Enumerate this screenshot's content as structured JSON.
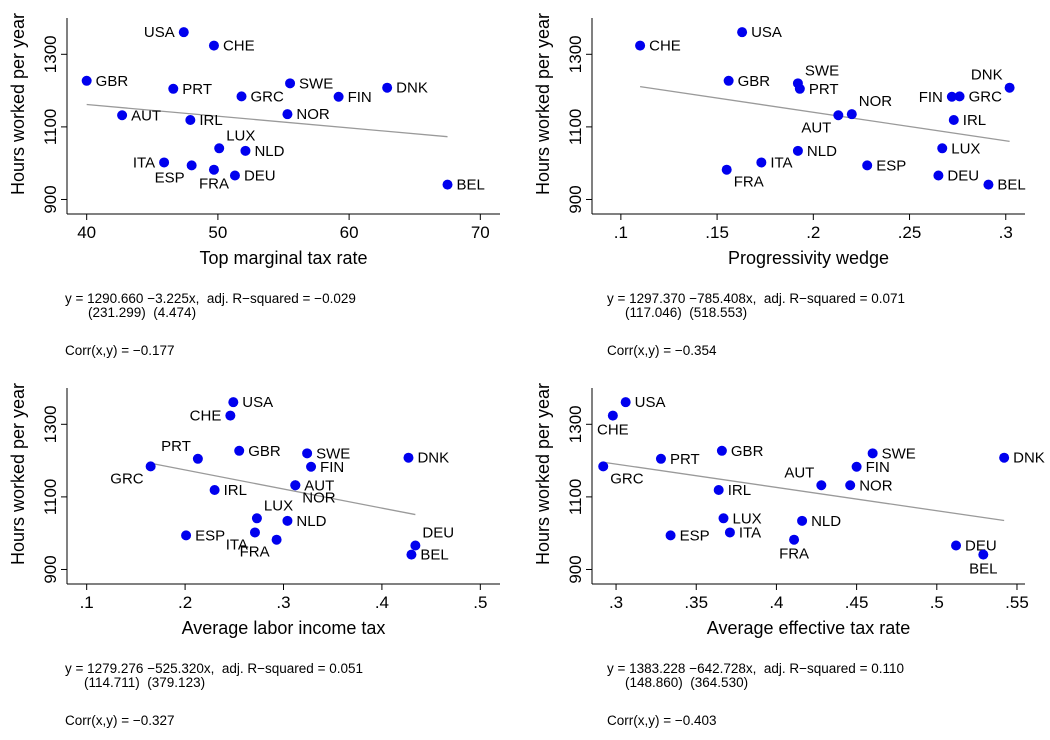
{
  "chart_data": [
    {
      "type": "scatter",
      "xlabel": "Top marginal tax rate",
      "ylabel": "Hours worked per year",
      "xlim": [
        38.5,
        71.5
      ],
      "ylim": [
        860,
        1400
      ],
      "xticks": [
        40,
        50,
        60,
        70
      ],
      "xtick_labels": [
        "40",
        "50",
        "60",
        "70"
      ],
      "yticks": [
        900,
        1100,
        1300
      ],
      "ytick_labels": [
        "900",
        "1100",
        "1300"
      ],
      "fit": {
        "intercept": 1290.66,
        "slope": -3.225
      },
      "points": [
        {
          "label": "USA",
          "x": 47.4,
          "y": 1361,
          "pos": "left"
        },
        {
          "label": "CHE",
          "x": 49.7,
          "y": 1324,
          "pos": "right"
        },
        {
          "label": "GBR",
          "x": 40.0,
          "y": 1227,
          "pos": "right"
        },
        {
          "label": "PRT",
          "x": 46.6,
          "y": 1205,
          "pos": "right"
        },
        {
          "label": "SWE",
          "x": 55.5,
          "y": 1220,
          "pos": "right"
        },
        {
          "label": "GRC",
          "x": 51.8,
          "y": 1184,
          "pos": "right"
        },
        {
          "label": "DNK",
          "x": 62.9,
          "y": 1208,
          "pos": "right"
        },
        {
          "label": "FIN",
          "x": 59.2,
          "y": 1183,
          "pos": "right"
        },
        {
          "label": "AUT",
          "x": 42.7,
          "y": 1132,
          "pos": "right"
        },
        {
          "label": "IRL",
          "x": 47.9,
          "y": 1119,
          "pos": "right"
        },
        {
          "label": "NOR",
          "x": 55.3,
          "y": 1135,
          "pos": "right"
        },
        {
          "label": "LUX",
          "x": 50.1,
          "y": 1041,
          "pos": "aboveright"
        },
        {
          "label": "NLD",
          "x": 52.1,
          "y": 1034,
          "pos": "right"
        },
        {
          "label": "ITA",
          "x": 45.9,
          "y": 1002,
          "pos": "left"
        },
        {
          "label": "ESP",
          "x": 48.0,
          "y": 994,
          "pos": "belowleft"
        },
        {
          "label": "FRA",
          "x": 49.7,
          "y": 982,
          "pos": "below"
        },
        {
          "label": "DEU",
          "x": 51.3,
          "y": 966,
          "pos": "right"
        },
        {
          "label": "BEL",
          "x": 67.5,
          "y": 941,
          "pos": "right"
        }
      ]
    },
    {
      "type": "scatter",
      "xlabel": "Progressivity wedge",
      "ylabel": "Hours worked per year",
      "xlim": [
        0.085,
        0.31
      ],
      "ylim": [
        860,
        1400
      ],
      "xticks": [
        0.1,
        0.15,
        0.2,
        0.25,
        0.3
      ],
      "xtick_labels": [
        ".1",
        ".15",
        ".2",
        ".25",
        ".3"
      ],
      "yticks": [
        900,
        1100,
        1300
      ],
      "ytick_labels": [
        "900",
        "1100",
        "1300"
      ],
      "fit": {
        "intercept": 1297.37,
        "slope": -785.408
      },
      "points": [
        {
          "label": "USA",
          "x": 0.163,
          "y": 1361,
          "pos": "right"
        },
        {
          "label": "CHE",
          "x": 0.11,
          "y": 1324,
          "pos": "right"
        },
        {
          "label": "GBR",
          "x": 0.156,
          "y": 1227,
          "pos": "right"
        },
        {
          "label": "SWE",
          "x": 0.192,
          "y": 1220,
          "pos": "aboveright"
        },
        {
          "label": "PRT",
          "x": 0.193,
          "y": 1205,
          "pos": "right"
        },
        {
          "label": "DNK",
          "x": 0.302,
          "y": 1208,
          "pos": "aboveleft"
        },
        {
          "label": "FIN",
          "x": 0.272,
          "y": 1183,
          "pos": "left"
        },
        {
          "label": "GRC",
          "x": 0.276,
          "y": 1184,
          "pos": "right"
        },
        {
          "label": "NOR",
          "x": 0.22,
          "y": 1135,
          "pos": "aboveright"
        },
        {
          "label": "AUT",
          "x": 0.213,
          "y": 1132,
          "pos": "belowleft"
        },
        {
          "label": "IRL",
          "x": 0.273,
          "y": 1119,
          "pos": "right"
        },
        {
          "label": "NLD",
          "x": 0.192,
          "y": 1034,
          "pos": "right"
        },
        {
          "label": "LUX",
          "x": 0.267,
          "y": 1041,
          "pos": "right"
        },
        {
          "label": "ITA",
          "x": 0.173,
          "y": 1002,
          "pos": "right"
        },
        {
          "label": "ESP",
          "x": 0.228,
          "y": 994,
          "pos": "right"
        },
        {
          "label": "FRA",
          "x": 0.155,
          "y": 982,
          "pos": "belowright"
        },
        {
          "label": "DEU",
          "x": 0.265,
          "y": 966,
          "pos": "right"
        },
        {
          "label": "BEL",
          "x": 0.291,
          "y": 941,
          "pos": "right"
        }
      ]
    },
    {
      "type": "scatter",
      "xlabel": "Average labor income tax",
      "ylabel": "Hours worked per year",
      "xlim": [
        0.08,
        0.52
      ],
      "ylim": [
        860,
        1400
      ],
      "xticks": [
        0.1,
        0.2,
        0.3,
        0.4,
        0.5
      ],
      "xtick_labels": [
        ".1",
        ".2",
        ".3",
        ".4",
        ".5"
      ],
      "yticks": [
        900,
        1100,
        1300
      ],
      "ytick_labels": [
        "900",
        "1100",
        "1300"
      ],
      "fit": {
        "intercept": 1279.276,
        "slope": -525.32
      },
      "points": [
        {
          "label": "USA",
          "x": 0.249,
          "y": 1361,
          "pos": "right"
        },
        {
          "label": "CHE",
          "x": 0.246,
          "y": 1324,
          "pos": "left"
        },
        {
          "label": "PRT",
          "x": 0.213,
          "y": 1205,
          "pos": "aboveleft"
        },
        {
          "label": "GBR",
          "x": 0.255,
          "y": 1227,
          "pos": "right"
        },
        {
          "label": "SWE",
          "x": 0.324,
          "y": 1220,
          "pos": "right"
        },
        {
          "label": "FIN",
          "x": 0.328,
          "y": 1183,
          "pos": "right"
        },
        {
          "label": "DNK",
          "x": 0.427,
          "y": 1208,
          "pos": "right"
        },
        {
          "label": "GRC",
          "x": 0.165,
          "y": 1184,
          "pos": "belowleft"
        },
        {
          "label": "AUT",
          "x": 0.312,
          "y": 1132,
          "pos": "right"
        },
        {
          "label": "NOR",
          "x": 0.312,
          "y": 1132,
          "pos": "belowright"
        },
        {
          "label": "IRL",
          "x": 0.23,
          "y": 1119,
          "pos": "right"
        },
        {
          "label": "LUX",
          "x": 0.273,
          "y": 1041,
          "pos": "aboveright"
        },
        {
          "label": "NLD",
          "x": 0.304,
          "y": 1034,
          "pos": "right"
        },
        {
          "label": "ESP",
          "x": 0.201,
          "y": 994,
          "pos": "right"
        },
        {
          "label": "ITA",
          "x": 0.271,
          "y": 1002,
          "pos": "belowleft"
        },
        {
          "label": "FRA",
          "x": 0.293,
          "y": 982,
          "pos": "belowleft"
        },
        {
          "label": "DEU",
          "x": 0.434,
          "y": 966,
          "pos": "aboveright"
        },
        {
          "label": "BEL",
          "x": 0.43,
          "y": 941,
          "pos": "right"
        }
      ]
    },
    {
      "type": "scatter",
      "xlabel": "Average effective tax rate",
      "ylabel": "Hours worked per year",
      "xlim": [
        0.285,
        0.555
      ],
      "ylim": [
        860,
        1400
      ],
      "xticks": [
        0.3,
        0.35,
        0.4,
        0.45,
        0.5,
        0.55
      ],
      "xtick_labels": [
        ".3",
        ".35",
        ".4",
        ".45",
        ".5",
        ".55"
      ],
      "yticks": [
        900,
        1100,
        1300
      ],
      "ytick_labels": [
        "900",
        "1100",
        "1300"
      ],
      "fit": {
        "intercept": 1383.228,
        "slope": -642.728
      },
      "points": [
        {
          "label": "USA",
          "x": 0.306,
          "y": 1361,
          "pos": "right"
        },
        {
          "label": "CHE",
          "x": 0.298,
          "y": 1324,
          "pos": "below"
        },
        {
          "label": "PRT",
          "x": 0.328,
          "y": 1205,
          "pos": "right"
        },
        {
          "label": "GBR",
          "x": 0.366,
          "y": 1227,
          "pos": "right"
        },
        {
          "label": "SWE",
          "x": 0.46,
          "y": 1220,
          "pos": "right"
        },
        {
          "label": "DNK",
          "x": 0.542,
          "y": 1208,
          "pos": "right"
        },
        {
          "label": "GRC",
          "x": 0.292,
          "y": 1184,
          "pos": "belowright"
        },
        {
          "label": "FIN",
          "x": 0.45,
          "y": 1183,
          "pos": "right"
        },
        {
          "label": "AUT",
          "x": 0.428,
          "y": 1132,
          "pos": "aboveleft"
        },
        {
          "label": "NOR",
          "x": 0.446,
          "y": 1132,
          "pos": "right"
        },
        {
          "label": "IRL",
          "x": 0.364,
          "y": 1119,
          "pos": "right"
        },
        {
          "label": "LUX",
          "x": 0.367,
          "y": 1041,
          "pos": "right"
        },
        {
          "label": "NLD",
          "x": 0.416,
          "y": 1034,
          "pos": "right"
        },
        {
          "label": "ESP",
          "x": 0.334,
          "y": 994,
          "pos": "right"
        },
        {
          "label": "ITA",
          "x": 0.371,
          "y": 1002,
          "pos": "right"
        },
        {
          "label": "FRA",
          "x": 0.411,
          "y": 982,
          "pos": "below"
        },
        {
          "label": "DEU",
          "x": 0.512,
          "y": 966,
          "pos": "right"
        },
        {
          "label": "BEL",
          "x": 0.529,
          "y": 941,
          "pos": "below"
        }
      ]
    }
  ],
  "regressions": [
    {
      "equation": "y = 1290.660 −3.225x,  adj. R−squared = −0.029",
      "std_errors": "(231.299)  (4.474)",
      "corr": "Corr(x,y) = −0.177"
    },
    {
      "equation": "y = 1297.370 −785.408x,  adj. R−squared = 0.071",
      "std_errors": "(117.046)  (518.553)",
      "corr": "Corr(x,y) = −0.354"
    },
    {
      "equation": "y = 1279.276 −525.320x,  adj. R−squared = 0.051",
      "std_errors": "(114.711)  (379.123)",
      "corr": "Corr(x,y) = −0.327"
    },
    {
      "equation": "y = 1383.228 −642.728x,  adj. R−squared = 0.110",
      "std_errors": "(148.860)  (364.530)",
      "corr": "Corr(x,y) = −0.403"
    }
  ],
  "colors": {
    "point": "#0000ee",
    "fit_line": "#9a9a9a",
    "axis": "#000000"
  }
}
